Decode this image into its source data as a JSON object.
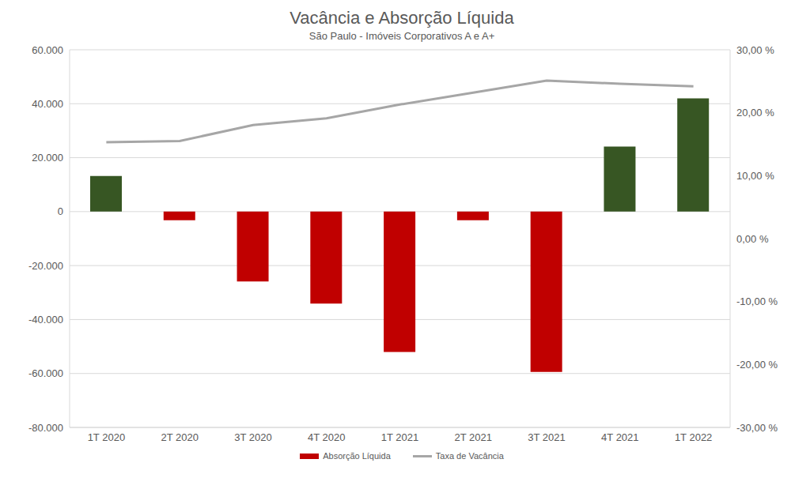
{
  "chart_data": {
    "type": "bar",
    "title": "Vacância e Absorção Líquida",
    "subtitle": "São Paulo - Imóveis Corporativos A e A+",
    "categories": [
      "1T 2020",
      "2T 2020",
      "3T 2020",
      "4T 2020",
      "1T 2021",
      "2T 2021",
      "3T 2021",
      "4T 2021",
      "1T 2022"
    ],
    "series": [
      {
        "name": "Absorção Líquida",
        "type": "bar",
        "color": "#c00000",
        "colors": [
          "#375623",
          "#c00000",
          "#c00000",
          "#c00000",
          "#c00000",
          "#c00000",
          "#c00000",
          "#375623",
          "#375623"
        ],
        "values": [
          13200,
          -3200,
          -25900,
          -34100,
          -52000,
          -3200,
          -59400,
          24100,
          42000
        ]
      },
      {
        "name": "Taxa de Vacância",
        "type": "line",
        "color": "#a6a6a6",
        "axis": "y2",
        "values": [
          15.3,
          15.5,
          18.05,
          19.1,
          21.3,
          23.2,
          25.1,
          24.6,
          24.2
        ]
      }
    ],
    "ylim": [
      -80000,
      60000
    ],
    "yticks": [
      {
        "value": -80000,
        "label": "-80.000"
      },
      {
        "value": -60000,
        "label": "-60.000"
      },
      {
        "value": -40000,
        "label": "-40.000"
      },
      {
        "value": -20000,
        "label": "-20.000"
      },
      0,
      {
        "value": 20000,
        "label": "20.000"
      },
      {
        "value": 40000,
        "label": "40.000"
      },
      {
        "value": 60000,
        "label": "60.000"
      }
    ],
    "y2lim": [
      -30,
      30
    ],
    "y2ticks": [
      {
        "value": -30,
        "label": "-30,00 %"
      },
      {
        "value": -20,
        "label": "-20,00 %"
      },
      {
        "value": -10,
        "label": "-10,00 %"
      },
      {
        "value": 0,
        "label": "0,00 %"
      },
      {
        "value": 10,
        "label": "10,00 %"
      },
      {
        "value": 20,
        "label": "20,00 %"
      },
      {
        "value": 30,
        "label": "30,00 %"
      }
    ],
    "grid": true,
    "legend": "bottom"
  }
}
